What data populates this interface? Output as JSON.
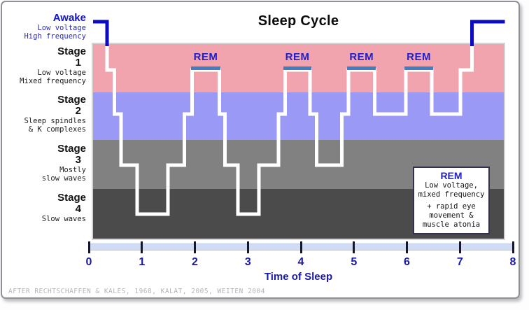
{
  "title": "Sleep Cycle",
  "rem_label": "REM",
  "attribution": "AFTER RECHTSCHAFFEN & KALES, 1968, KALAT, 2005, WEITEN 2004",
  "colors": {
    "stage1_band": "#f2a4ae",
    "stage2_band": "#9b99f6",
    "stage3_band": "#818181",
    "stage4_band": "#4b4b4b",
    "awake_line": "#0b0bc0",
    "hypnogram_line": "#ffffff",
    "awake_text": "#1414c8",
    "awake_subtext": "#2929c4",
    "rem_text": "#2121cc",
    "rem_underline": "#3f7fbf",
    "axis_text": "#1a1aa8",
    "axis_bar": "#cfdcf3",
    "tick": "#15152c"
  },
  "left_labels": {
    "awake": {
      "heading": "Awake",
      "lines": [
        "Low voltage",
        "High frequency"
      ]
    },
    "stage1": {
      "heading": "Stage",
      "number": "1",
      "lines": [
        "Low voltage",
        "Mixed frequency"
      ]
    },
    "stage2": {
      "heading": "Stage",
      "number": "2",
      "lines": [
        "Sleep spindles",
        "& K complexes"
      ]
    },
    "stage3": {
      "heading": "Stage",
      "number": "3",
      "lines": [
        "Mostly",
        "slow waves"
      ]
    },
    "stage4": {
      "heading": "Stage",
      "number": "4",
      "lines": [
        "Slow waves"
      ]
    }
  },
  "legend": {
    "title": "REM",
    "lines": [
      "Low voltage,",
      "mixed frequency",
      "+ rapid eye",
      "movement &",
      "muscle atonia"
    ]
  },
  "x_axis": {
    "label": "Time of Sleep",
    "ticks": [
      "0",
      "1",
      "2",
      "3",
      "4",
      "5",
      "6",
      "7",
      "8"
    ]
  },
  "chart_data": {
    "type": "line",
    "subtype": "hypnogram-step-line",
    "title": "Sleep Cycle",
    "xlabel": "Time of Sleep",
    "x_unit": "hours",
    "x_range": [
      0,
      8
    ],
    "grid": false,
    "stage_bands_top_to_bottom": [
      "Stage 1 (REM level)",
      "Stage 2",
      "Stage 3",
      "Stage 4"
    ],
    "segments_hour_from_to_stage": [
      [
        0.08,
        0.34,
        "awake"
      ],
      [
        0.34,
        0.48,
        "1"
      ],
      [
        0.48,
        0.61,
        "2"
      ],
      [
        0.61,
        0.91,
        "3"
      ],
      [
        0.91,
        1.49,
        "4"
      ],
      [
        1.49,
        1.8,
        "3"
      ],
      [
        1.8,
        1.95,
        "2"
      ],
      [
        1.95,
        2.46,
        "rem"
      ],
      [
        2.46,
        2.57,
        "2"
      ],
      [
        2.57,
        2.81,
        "3"
      ],
      [
        2.81,
        3.21,
        "4"
      ],
      [
        3.21,
        3.58,
        "3"
      ],
      [
        3.58,
        3.7,
        "2"
      ],
      [
        3.7,
        4.17,
        "rem"
      ],
      [
        4.17,
        4.3,
        "2"
      ],
      [
        4.3,
        4.77,
        "3"
      ],
      [
        4.77,
        4.9,
        "2"
      ],
      [
        4.9,
        5.39,
        "rem"
      ],
      [
        5.39,
        5.98,
        "2"
      ],
      [
        5.98,
        6.47,
        "rem"
      ],
      [
        6.47,
        7.01,
        "2"
      ],
      [
        7.01,
        7.23,
        "1"
      ],
      [
        7.23,
        7.85,
        "awake"
      ]
    ],
    "rem_periods_hours": [
      [
        1.95,
        2.46
      ],
      [
        3.7,
        4.17
      ],
      [
        4.9,
        5.39
      ],
      [
        5.98,
        6.47
      ]
    ],
    "legend_position": "inside lower right"
  }
}
